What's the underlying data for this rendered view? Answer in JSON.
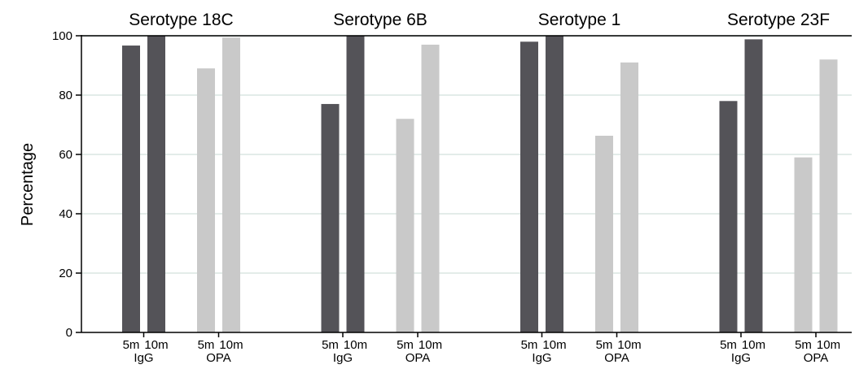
{
  "chart_data": {
    "type": "bar",
    "ylabel": "Percentage",
    "ylim": [
      0,
      100
    ],
    "yticks": [
      0,
      20,
      40,
      60,
      80,
      100
    ],
    "grid": true,
    "bar_labels": [
      "5m",
      "10m"
    ],
    "groups": [
      "IgG",
      "OPA"
    ],
    "colors": {
      "IgG": "#545358",
      "OPA": "#c9c9c9",
      "grid": "#e3ece9",
      "axis": "#000000"
    },
    "panels": [
      {
        "title": "Serotype 18C",
        "IgG": [
          96.7,
          100
        ],
        "OPA": [
          89,
          99.4
        ]
      },
      {
        "title": "Serotype 6B",
        "IgG": [
          77,
          100
        ],
        "OPA": [
          72,
          97
        ]
      },
      {
        "title": "Serotype 1",
        "IgG": [
          98,
          100
        ],
        "OPA": [
          66.3,
          91
        ]
      },
      {
        "title": "Serotype 23F",
        "IgG": [
          78,
          98.8
        ],
        "OPA": [
          59,
          92
        ]
      }
    ]
  }
}
